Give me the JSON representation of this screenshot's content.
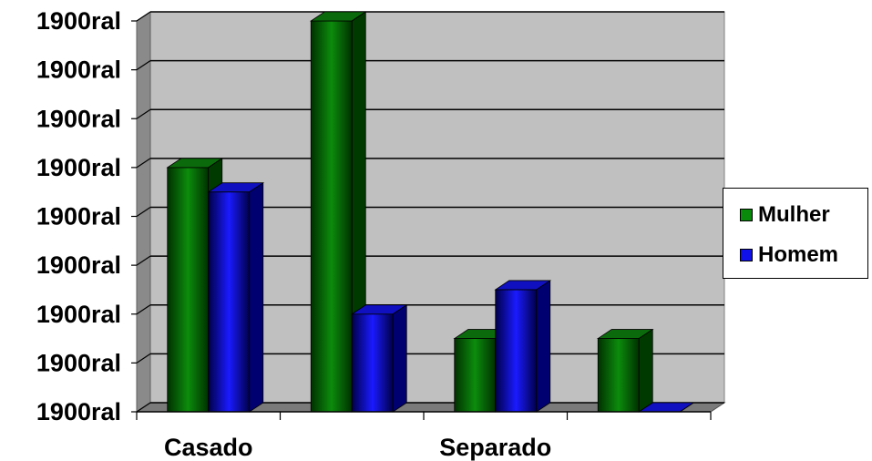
{
  "chart_data": {
    "type": "bar",
    "categories": [
      "Casado",
      "",
      "Separado",
      ""
    ],
    "x_tick_labels": [
      "Casado",
      "Separado"
    ],
    "y_tick_labels": [
      "1900ral",
      "1900ral",
      "1900ral",
      "1900ral",
      "1900ral",
      "1900ral",
      "1900ral",
      "1900ral",
      "1900ral"
    ],
    "ylim": [
      0,
      8
    ],
    "grid": true,
    "legend_position": "right",
    "series": [
      {
        "name": "Mulher",
        "color": "#0a8a0a",
        "values": [
          5,
          8,
          1.5,
          1.5
        ]
      },
      {
        "name": "Homem",
        "color": "#1010e8",
        "values": [
          4.5,
          2,
          2.5,
          0
        ]
      }
    ],
    "title": "",
    "xlabel": "",
    "ylabel": ""
  },
  "legend": {
    "items": [
      "Mulher",
      "Homem"
    ]
  }
}
